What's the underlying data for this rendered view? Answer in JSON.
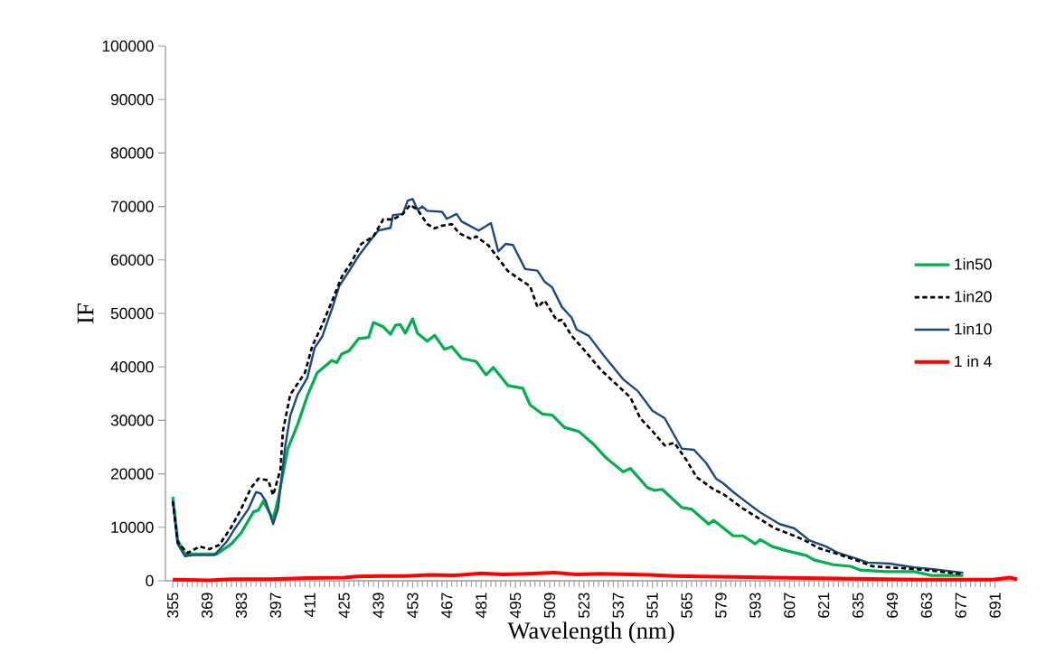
{
  "chart_data": {
    "type": "line",
    "xlabel": "Wavelength (nm)",
    "ylabel": "IF",
    "xlim": [
      352,
      700
    ],
    "ylim": [
      0,
      100000
    ],
    "xticks": [
      355,
      369,
      383,
      397,
      411,
      425,
      439,
      453,
      467,
      481,
      495,
      509,
      523,
      537,
      551,
      565,
      579,
      593,
      607,
      621,
      635,
      649,
      663,
      677,
      691
    ],
    "yticks": [
      0,
      10000,
      20000,
      30000,
      40000,
      50000,
      60000,
      70000,
      80000,
      90000,
      100000
    ],
    "grid": false,
    "legend": "right",
    "marker": "none",
    "series": [
      {
        "name": "1in50",
        "color": "#00b050",
        "line_style": "solid",
        "x": [
          355,
          357,
          360,
          373,
          379,
          383,
          388,
          390,
          392,
          396,
          398,
          402,
          406,
          410,
          414,
          420,
          422,
          424,
          427,
          431,
          435,
          437,
          441,
          444,
          446,
          448,
          450,
          453,
          455,
          459,
          462,
          466,
          469,
          473,
          479,
          483,
          486,
          492,
          498,
          501,
          506,
          510,
          515,
          521,
          527,
          532,
          539,
          542,
          549,
          552,
          555,
          563,
          567,
          574,
          576,
          584,
          588,
          593,
          595,
          600,
          606,
          614,
          617,
          625,
          632,
          636,
          646,
          658,
          665,
          678
        ],
        "values": [
          15700,
          7600,
          5000,
          5000,
          6900,
          9000,
          12900,
          13200,
          14900,
          11500,
          15200,
          24700,
          29200,
          34600,
          38900,
          41200,
          40800,
          42400,
          43000,
          45300,
          45500,
          48300,
          47500,
          46100,
          47800,
          47900,
          46300,
          49000,
          46300,
          44800,
          45900,
          43300,
          43800,
          41600,
          41000,
          38500,
          39900,
          36500,
          36000,
          32900,
          31200,
          31000,
          28700,
          27900,
          25500,
          23000,
          20400,
          21000,
          17400,
          16900,
          17100,
          13700,
          13400,
          10600,
          11300,
          8400,
          8400,
          6900,
          7700,
          6400,
          5600,
          4700,
          3900,
          3000,
          2700,
          2000,
          1700,
          1700,
          1000,
          1000
        ]
      },
      {
        "name": "1in20",
        "color": "#000000",
        "line_style": "dashed",
        "x": [
          355,
          357,
          361,
          366,
          370,
          374,
          379,
          383,
          387,
          390,
          394,
          396,
          399,
          400,
          403,
          409,
          412,
          416,
          421,
          424,
          428,
          432,
          437,
          441,
          445,
          449,
          452,
          455,
          459,
          462,
          465,
          469,
          472,
          477,
          479,
          484,
          492,
          497,
          501,
          504,
          507,
          512,
          514,
          518,
          524,
          530,
          538,
          542,
          546,
          551,
          556,
          560,
          565,
          569,
          576,
          580,
          583,
          588,
          594,
          601,
          609,
          613,
          619,
          626,
          634,
          641,
          648,
          658,
          665,
          678
        ],
        "values": [
          14900,
          7200,
          5200,
          6400,
          5900,
          6700,
          10100,
          13500,
          17400,
          19100,
          18800,
          16000,
          20800,
          28000,
          34800,
          38900,
          43900,
          47800,
          53400,
          56800,
          59600,
          63000,
          64400,
          67600,
          67600,
          68600,
          70300,
          69400,
          66700,
          65900,
          66400,
          66700,
          65000,
          63900,
          64400,
          62700,
          57900,
          56300,
          55100,
          51200,
          52400,
          48600,
          48800,
          45800,
          42700,
          39400,
          36000,
          34300,
          30400,
          28000,
          25300,
          25800,
          22500,
          19400,
          17100,
          16200,
          15200,
          13500,
          11800,
          9800,
          8400,
          7600,
          6100,
          5100,
          3900,
          2700,
          2500,
          2200,
          1900,
          1200
        ]
      },
      {
        "name": "1in10",
        "color": "#1f497d",
        "line_style": "solid",
        "x": [
          355,
          357,
          360,
          363,
          372,
          377,
          380,
          386,
          389,
          391,
          393,
          396,
          398,
          401,
          403,
          406,
          410,
          413,
          416,
          420,
          423,
          427,
          431,
          437,
          439,
          444,
          445,
          449,
          451,
          453,
          455,
          457,
          459,
          465,
          467,
          471,
          473,
          480,
          485,
          488,
          491,
          494,
          499,
          504,
          507,
          510,
          514,
          518,
          520,
          525,
          531,
          539,
          545,
          551,
          556,
          563,
          568,
          573,
          577,
          580,
          584,
          590,
          595,
          603,
          609,
          615,
          622,
          627,
          634,
          639,
          648,
          658,
          665,
          678
        ],
        "values": [
          14900,
          6900,
          4600,
          4800,
          4800,
          7300,
          9500,
          13500,
          16600,
          16300,
          14900,
          10600,
          13500,
          25300,
          30900,
          34800,
          38000,
          43600,
          45600,
          50800,
          55100,
          57900,
          60800,
          64400,
          65500,
          66000,
          68400,
          68600,
          71100,
          71400,
          69400,
          70000,
          69200,
          69000,
          67700,
          68600,
          67200,
          65500,
          66900,
          61600,
          63000,
          62800,
          58300,
          58000,
          55900,
          54900,
          51200,
          49200,
          47000,
          45800,
          42200,
          37700,
          35500,
          31800,
          30400,
          24700,
          24500,
          22000,
          19100,
          18200,
          16600,
          14500,
          12800,
          10600,
          9800,
          7600,
          6400,
          5200,
          4200,
          3400,
          3200,
          2500,
          2200,
          1500
        ]
      },
      {
        "name": "1 in 4",
        "color": "#ff0000",
        "line_style": "solid",
        "x": [
          355,
          370,
          380,
          395,
          410,
          425,
          430,
          440,
          450,
          460,
          470,
          481,
          490,
          500,
          511,
          520,
          530,
          540,
          550,
          560,
          570,
          585,
          600,
          615,
          630,
          645,
          660,
          675,
          690,
          697,
          700
        ],
        "values": [
          200,
          100,
          300,
          300,
          500,
          600,
          800,
          900,
          900,
          1100,
          1000,
          1400,
          1200,
          1300,
          1500,
          1200,
          1300,
          1200,
          1100,
          900,
          800,
          700,
          600,
          500,
          400,
          300,
          200,
          200,
          200,
          600,
          300
        ]
      }
    ]
  }
}
